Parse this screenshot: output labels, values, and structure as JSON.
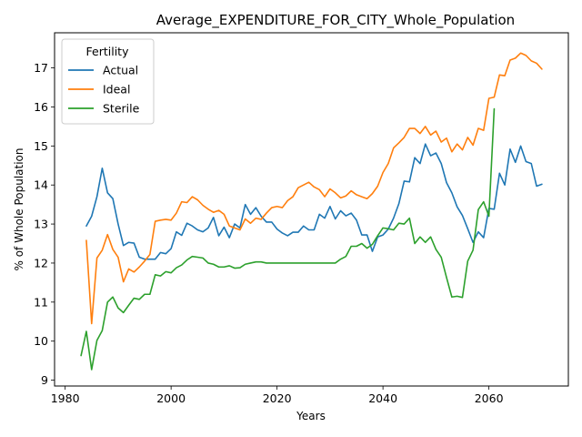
{
  "chart_data": {
    "type": "line",
    "title": "Average_EXPENDITURE_FOR_CITY_Whole_Population",
    "xlabel": "Years",
    "ylabel": "% of Whole Population",
    "xlim": [
      1978,
      2075
    ],
    "ylim": [
      8.85,
      17.9
    ],
    "xticks": [
      1980,
      2000,
      2020,
      2040,
      2060
    ],
    "yticks": [
      9,
      10,
      11,
      12,
      13,
      14,
      15,
      16,
      17
    ],
    "grid": false,
    "legend": {
      "title": "Fertility",
      "position": "top-left"
    },
    "series": [
      {
        "name": "Actual",
        "color": "#1f77b4",
        "x": [
          1984,
          1985,
          1986,
          1987,
          1988,
          1989,
          1990,
          1991,
          1992,
          1993,
          1994,
          1995,
          1996,
          1997,
          1998,
          1999,
          2000,
          2001,
          2002,
          2003,
          2004,
          2005,
          2006,
          2007,
          2008,
          2009,
          2010,
          2011,
          2012,
          2013,
          2014,
          2015,
          2016,
          2017,
          2018,
          2019,
          2020,
          2021,
          2022,
          2023,
          2024,
          2025,
          2026,
          2027,
          2028,
          2029,
          2030,
          2031,
          2032,
          2033,
          2034,
          2035,
          2036,
          2037,
          2038,
          2039,
          2040,
          2041,
          2042,
          2043,
          2044,
          2045,
          2046,
          2047,
          2048,
          2049,
          2050,
          2051,
          2052,
          2053,
          2054,
          2055,
          2056,
          2057,
          2058,
          2059,
          2060,
          2061,
          2062,
          2063,
          2064,
          2065,
          2066,
          2067,
          2068,
          2069,
          2070
        ],
        "y": [
          12.95,
          13.2,
          13.7,
          14.43,
          13.8,
          13.65,
          13.0,
          12.45,
          12.53,
          12.51,
          12.15,
          12.1,
          12.1,
          12.1,
          12.27,
          12.24,
          12.37,
          12.8,
          12.71,
          13.02,
          12.95,
          12.85,
          12.8,
          12.9,
          13.17,
          12.7,
          12.92,
          12.65,
          13.0,
          12.9,
          13.5,
          13.25,
          13.42,
          13.2,
          13.05,
          13.05,
          12.87,
          12.77,
          12.7,
          12.79,
          12.79,
          12.95,
          12.85,
          12.85,
          13.25,
          13.15,
          13.45,
          13.13,
          13.34,
          13.21,
          13.28,
          13.1,
          12.72,
          12.72,
          12.3,
          12.67,
          12.72,
          12.87,
          13.15,
          13.52,
          14.1,
          14.08,
          14.7,
          14.55,
          15.05,
          14.75,
          14.82,
          14.55,
          14.06,
          13.8,
          13.44,
          13.22,
          12.88,
          12.53,
          12.8,
          12.65,
          13.4,
          13.38,
          14.3,
          14.0,
          14.92,
          14.58,
          15.0,
          14.6,
          14.55,
          13.97,
          14.02
        ]
      },
      {
        "name": "Ideal",
        "color": "#ff7f0e",
        "x": [
          1984,
          1985,
          1986,
          1987,
          1988,
          1989,
          1990,
          1991,
          1992,
          1993,
          1994,
          1995,
          1996,
          1997,
          1998,
          1999,
          2000,
          2001,
          2002,
          2003,
          2004,
          2005,
          2006,
          2007,
          2008,
          2009,
          2010,
          2011,
          2012,
          2013,
          2014,
          2015,
          2016,
          2017,
          2018,
          2019,
          2020,
          2021,
          2022,
          2023,
          2024,
          2025,
          2026,
          2027,
          2028,
          2029,
          2030,
          2031,
          2032,
          2033,
          2034,
          2035,
          2036,
          2037,
          2038,
          2039,
          2040,
          2041,
          2042,
          2043,
          2044,
          2045,
          2046,
          2047,
          2048,
          2049,
          2050,
          2051,
          2052,
          2053,
          2054,
          2055,
          2056,
          2057,
          2058,
          2059,
          2060,
          2061,
          2062,
          2063,
          2064,
          2065,
          2066,
          2067,
          2068,
          2069,
          2070
        ],
        "y": [
          12.58,
          10.45,
          12.13,
          12.33,
          12.73,
          12.35,
          12.15,
          11.52,
          11.85,
          11.77,
          11.9,
          12.05,
          12.22,
          13.07,
          13.1,
          13.12,
          13.1,
          13.28,
          13.57,
          13.55,
          13.7,
          13.62,
          13.48,
          13.38,
          13.3,
          13.35,
          13.25,
          12.95,
          12.9,
          12.85,
          13.13,
          13.02,
          13.15,
          13.12,
          13.28,
          13.42,
          13.45,
          13.42,
          13.6,
          13.7,
          13.93,
          14.0,
          14.07,
          13.95,
          13.88,
          13.7,
          13.9,
          13.8,
          13.67,
          13.72,
          13.85,
          13.75,
          13.7,
          13.65,
          13.78,
          13.97,
          14.32,
          14.55,
          14.95,
          15.08,
          15.22,
          15.45,
          15.45,
          15.32,
          15.5,
          15.28,
          15.38,
          15.1,
          15.2,
          14.85,
          15.05,
          14.9,
          15.22,
          15.02,
          15.45,
          15.4,
          16.22,
          16.25,
          16.82,
          16.8,
          17.2,
          17.25,
          17.38,
          17.32,
          17.18,
          17.12,
          16.97
        ]
      },
      {
        "name": "Sterile",
        "color": "#2ca02c",
        "x": [
          1983,
          1984,
          1985,
          1986,
          1987,
          1988,
          1989,
          1990,
          1991,
          1992,
          1993,
          1994,
          1995,
          1996,
          1997,
          1998,
          1999,
          2000,
          2001,
          2002,
          2003,
          2004,
          2005,
          2006,
          2007,
          2008,
          2009,
          2010,
          2011,
          2012,
          2013,
          2014,
          2015,
          2016,
          2017,
          2018,
          2019,
          2020,
          2021,
          2022,
          2023,
          2024,
          2025,
          2026,
          2027,
          2028,
          2029,
          2030,
          2031,
          2032,
          2033,
          2034,
          2035,
          2036,
          2037,
          2038,
          2039,
          2040,
          2041,
          2042,
          2043,
          2044,
          2045,
          2046,
          2047,
          2048,
          2049,
          2050,
          2051,
          2052,
          2053,
          2054,
          2055,
          2056,
          2057,
          2058,
          2059,
          2060,
          2061
        ],
        "y": [
          9.63,
          10.25,
          9.27,
          10.02,
          10.27,
          11.0,
          11.13,
          10.85,
          10.73,
          10.92,
          11.1,
          11.07,
          11.2,
          11.2,
          11.7,
          11.67,
          11.78,
          11.75,
          11.88,
          11.95,
          12.08,
          12.17,
          12.15,
          12.13,
          12.0,
          11.97,
          11.9,
          11.9,
          11.93,
          11.87,
          11.88,
          11.97,
          12.0,
          12.03,
          12.03,
          12.0,
          12.0,
          12.0,
          12.0,
          12.0,
          12.0,
          12.0,
          12.0,
          12.0,
          12.0,
          12.0,
          12.0,
          12.0,
          12.0,
          12.1,
          12.17,
          12.43,
          12.43,
          12.5,
          12.38,
          12.48,
          12.7,
          12.9,
          12.88,
          12.85,
          13.02,
          13.0,
          13.15,
          12.5,
          12.67,
          12.53,
          12.67,
          12.35,
          12.15,
          11.63,
          11.13,
          11.15,
          11.12,
          12.05,
          12.33,
          13.37,
          13.57,
          13.2,
          15.95
        ]
      }
    ]
  }
}
